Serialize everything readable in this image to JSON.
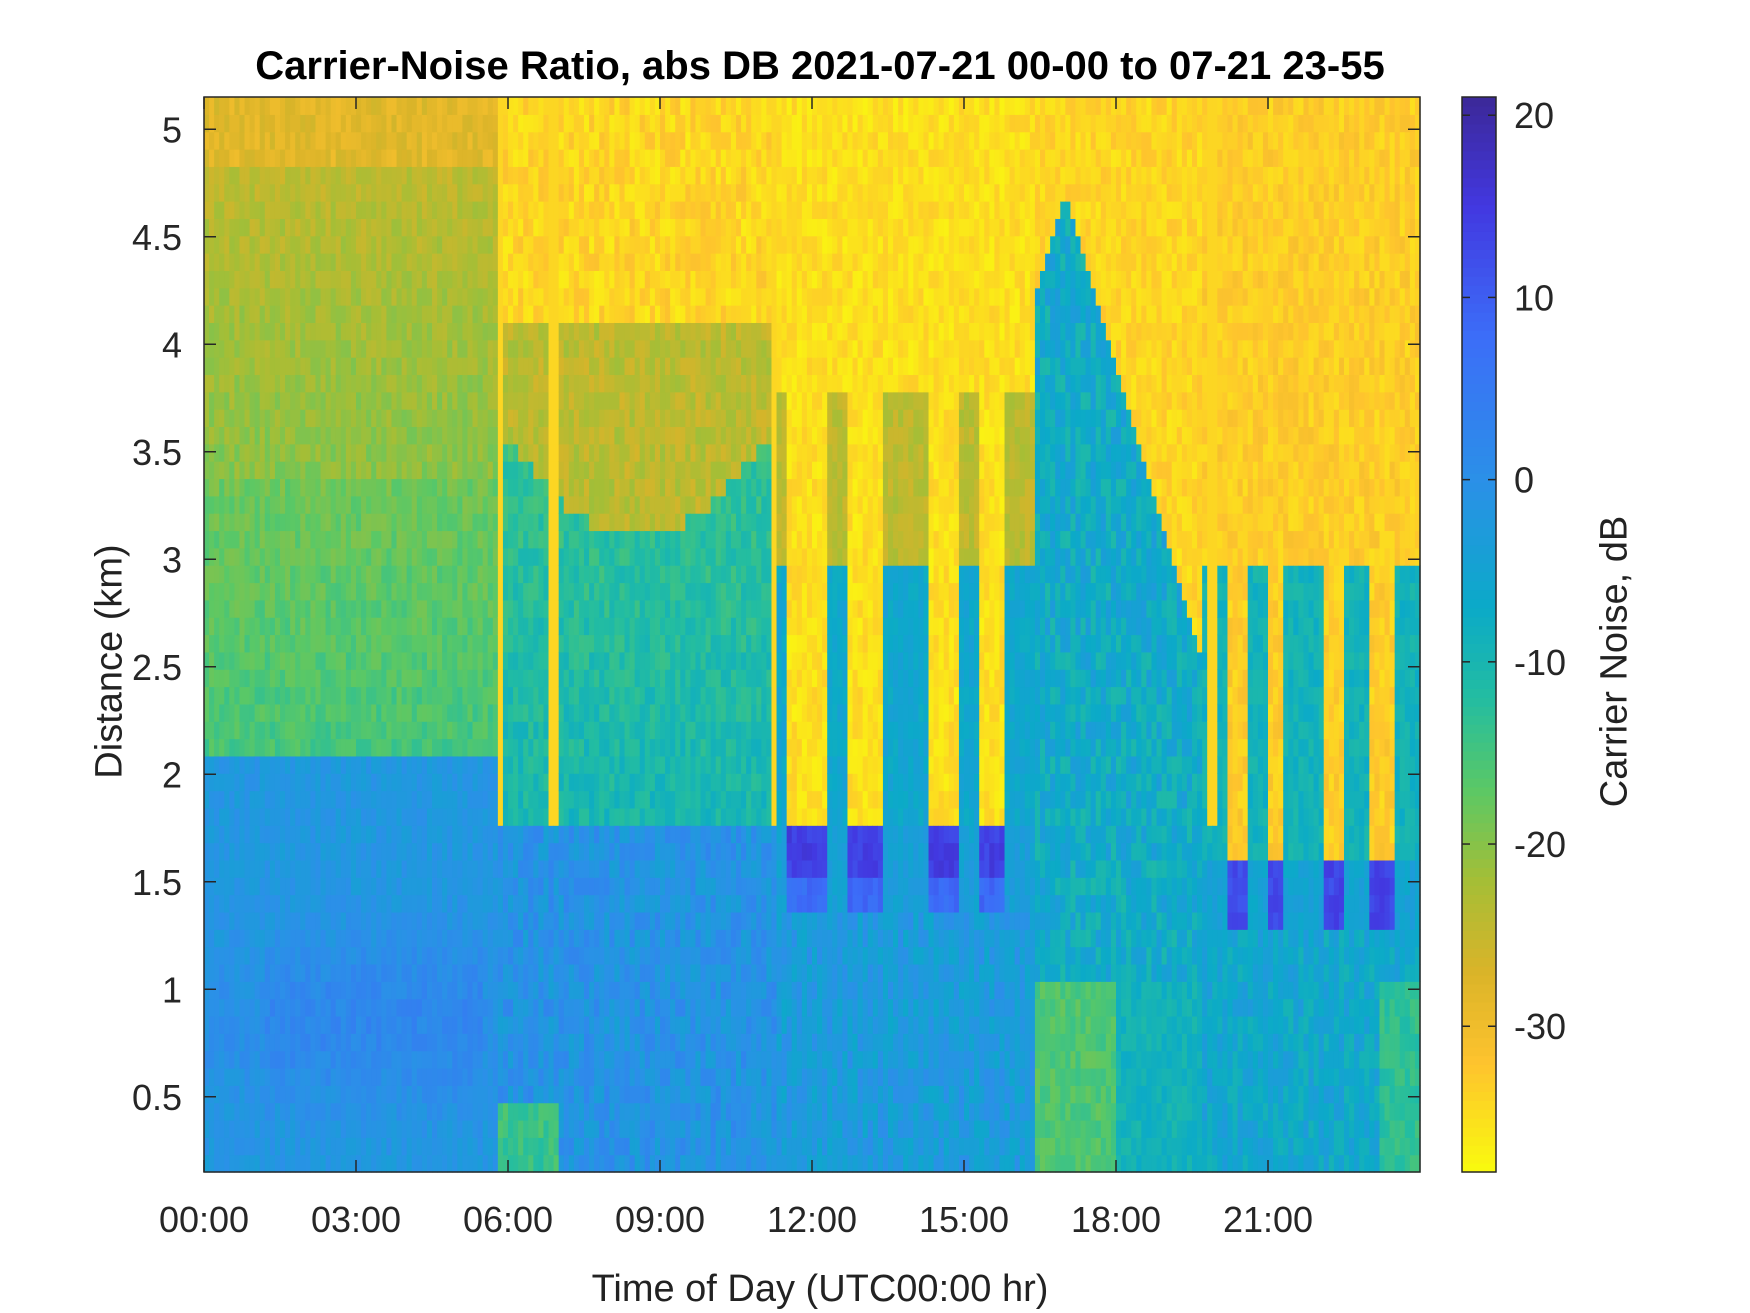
{
  "chart_data": {
    "type": "heatmap",
    "title": "Carrier-Noise Ratio, abs DB 2021-07-21 00-00 to 07-21 23-55",
    "xlabel": "Time of Day (UTC00:00 hr)",
    "ylabel": "Distance (km)",
    "xlim": [
      0,
      24
    ],
    "ylim": [
      0.15,
      5.15
    ],
    "x_ticks": [
      0,
      3,
      6,
      9,
      12,
      15,
      18,
      21
    ],
    "x_tick_labels": [
      "00:00",
      "03:00",
      "06:00",
      "09:00",
      "12:00",
      "15:00",
      "18:00",
      "21:00"
    ],
    "y_ticks": [
      0.5,
      1,
      1.5,
      2,
      2.5,
      3,
      3.5,
      4,
      4.5,
      5
    ],
    "y_tick_labels": [
      "0.5",
      "1",
      "1.5",
      "2",
      "2.5",
      "3",
      "3.5",
      "4",
      "4.5",
      "5"
    ],
    "colorbar": {
      "label": "Carrier Noise, dB",
      "range": [
        -38,
        21
      ],
      "ticks": [
        -30,
        -20,
        -10,
        0,
        10,
        20
      ],
      "tick_labels": [
        "-30",
        "-20",
        "-10",
        "0",
        "10",
        "20"
      ],
      "colormap": [
        "#F9FB0E",
        "#FEC32E",
        "#DAB429",
        "#A5BE36",
        "#5BC865",
        "#23BDA1",
        "#0BAAC8",
        "#2B90E8",
        "#3C6DF8",
        "#4238E0",
        "#3C2898"
      ],
      "colormap_stops": [
        -38,
        -32,
        -27,
        -22,
        -17,
        -12,
        -7,
        0,
        8,
        15,
        21
      ]
    },
    "description_of_features": {
      "upper_clear_layer_top_km": 5.15,
      "low_level_layer_top_km": 2.05,
      "cloud_base_km": 1.75,
      "afternoon_transition_hour": 16.4
    },
    "regimes": [
      {
        "x": [
          0,
          5.8
        ],
        "below_2km_dB": 1,
        "above_2km_dB": -15,
        "top_dB": -26
      },
      {
        "x": [
          5.8,
          11.3
        ],
        "below_2km_dB": -2,
        "above_2km_dB": -12,
        "top_dB": -33
      },
      {
        "x": [
          11.3,
          16.4
        ],
        "below_2km_dB": -3,
        "above_cloud_dB": -35,
        "cloud_base_dB": 14
      },
      {
        "x": [
          16.4,
          19.7
        ],
        "below_2km_dB": -9,
        "above_2km_dB": -8,
        "top_dB": -34
      },
      {
        "x": [
          19.7,
          24
        ],
        "below_2km_dB": -6,
        "above_cloud_dB": -33,
        "cloud_base_dB": 14
      }
    ]
  },
  "labels": {
    "title": "Carrier-Noise Ratio, abs DB 2021-07-21 00-00 to 07-21 23-55",
    "xlabel": "Time of Day (UTC00:00 hr)",
    "ylabel": "Distance (km)",
    "cblabel": "Carrier Noise, dB"
  }
}
